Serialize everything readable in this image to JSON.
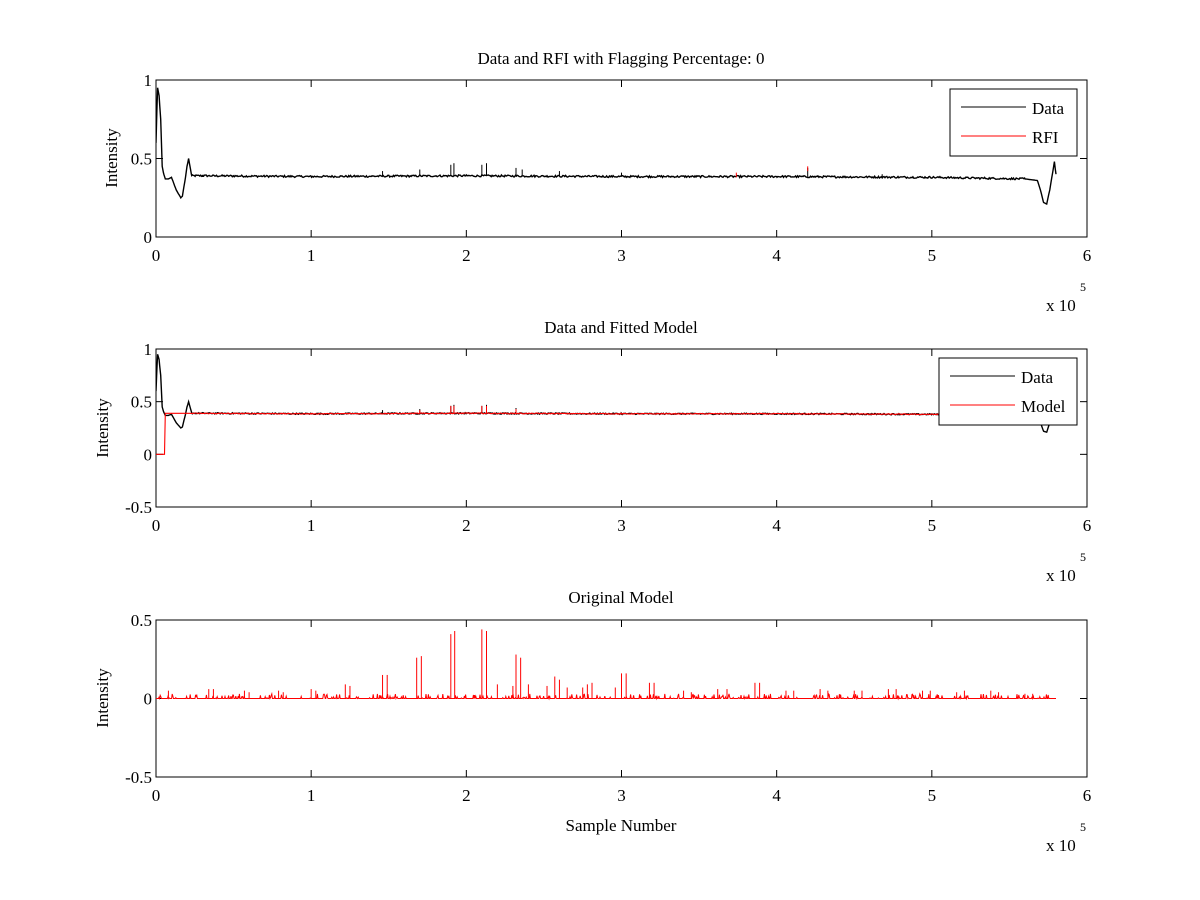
{
  "figure": {
    "background": "#ffffff",
    "colors": {
      "data": "#000000",
      "rfi": "#ff0000",
      "model": "#ff0000"
    }
  },
  "chart_data": [
    {
      "type": "line",
      "title": "Data and RFI with Flagging Percentage: 0",
      "xlabel": "",
      "ylabel": "Intensity",
      "xlim": [
        0,
        600000
      ],
      "ylim": [
        0,
        1
      ],
      "xticks": [
        "0",
        "1",
        "2",
        "3",
        "4",
        "5",
        "6"
      ],
      "xtick_values": [
        0,
        100000,
        200000,
        300000,
        400000,
        500000,
        600000
      ],
      "yticks": [
        "0",
        "0.5",
        "1"
      ],
      "ytick_values": [
        0,
        0.5,
        1
      ],
      "x_exponent_label": "x 10",
      "x_exponent_power": "5",
      "legend": {
        "position": "top-right",
        "entries": [
          "Data",
          "RFI"
        ]
      },
      "series": [
        {
          "name": "Data",
          "color": "#000000",
          "x": [
            0,
            1000,
            2000,
            3000,
            4000,
            5000,
            6000,
            8000,
            10000,
            13000,
            16000,
            17000,
            19000,
            20000,
            21000,
            23000,
            30000,
            100000,
            200000,
            300000,
            400000,
            500000,
            560000,
            568000,
            570000,
            572000,
            574000,
            576000,
            578000,
            579000,
            580000
          ],
          "y": [
            0.6,
            0.95,
            0.9,
            0.75,
            0.45,
            0.4,
            0.37,
            0.37,
            0.38,
            0.3,
            0.25,
            0.26,
            0.38,
            0.45,
            0.5,
            0.39,
            0.39,
            0.385,
            0.39,
            0.385,
            0.385,
            0.38,
            0.37,
            0.36,
            0.3,
            0.22,
            0.21,
            0.3,
            0.42,
            0.48,
            0.4
          ],
          "noise": 0.006,
          "spikes": [
            {
              "x": 190000,
              "y": 0.46
            },
            {
              "x": 192000,
              "y": 0.47
            },
            {
              "x": 210000,
              "y": 0.46
            },
            {
              "x": 213000,
              "y": 0.47
            },
            {
              "x": 170000,
              "y": 0.43
            },
            {
              "x": 232000,
              "y": 0.44
            },
            {
              "x": 236000,
              "y": 0.43
            },
            {
              "x": 146000,
              "y": 0.42
            },
            {
              "x": 260000,
              "y": 0.42
            },
            {
              "x": 300000,
              "y": 0.41
            },
            {
              "x": 420000,
              "y": 0.44
            },
            {
              "x": 468000,
              "y": 0.4
            }
          ]
        },
        {
          "name": "RFI",
          "color": "#ff0000",
          "x": [],
          "y": [],
          "spikes": [
            {
              "x": 374000,
              "y": 0.41
            },
            {
              "x": 420000,
              "y": 0.45
            }
          ]
        }
      ]
    },
    {
      "type": "line",
      "title": "Data and Fitted Model",
      "xlabel": "",
      "ylabel": "Intensity",
      "xlim": [
        0,
        600000
      ],
      "ylim": [
        -0.5,
        1
      ],
      "xticks": [
        "0",
        "1",
        "2",
        "3",
        "4",
        "5",
        "6"
      ],
      "xtick_values": [
        0,
        100000,
        200000,
        300000,
        400000,
        500000,
        600000
      ],
      "yticks": [
        "-0.5",
        "0",
        "0.5",
        "1"
      ],
      "ytick_values": [
        -0.5,
        0,
        0.5,
        1
      ],
      "x_exponent_label": "x 10",
      "x_exponent_power": "5",
      "legend": {
        "position": "top-right",
        "entries": [
          "Data",
          "Model"
        ]
      },
      "series": [
        {
          "name": "Data",
          "color": "#000000",
          "x": [
            0,
            1000,
            2000,
            3000,
            4000,
            5000,
            6000,
            8000,
            10000,
            13000,
            16000,
            17000,
            19000,
            20000,
            21000,
            23000,
            30000,
            100000,
            200000,
            300000,
            400000,
            500000,
            560000,
            568000,
            570000,
            572000,
            574000,
            576000,
            578000,
            579000,
            580000
          ],
          "y": [
            0.6,
            0.95,
            0.9,
            0.75,
            0.45,
            0.4,
            0.37,
            0.37,
            0.38,
            0.3,
            0.25,
            0.26,
            0.38,
            0.45,
            0.5,
            0.39,
            0.39,
            0.385,
            0.39,
            0.385,
            0.385,
            0.38,
            0.37,
            0.36,
            0.3,
            0.22,
            0.21,
            0.3,
            0.42,
            0.48,
            0.4
          ],
          "noise": 0.006,
          "spikes": [
            {
              "x": 190000,
              "y": 0.46
            },
            {
              "x": 192000,
              "y": 0.47
            },
            {
              "x": 210000,
              "y": 0.46
            },
            {
              "x": 213000,
              "y": 0.47
            },
            {
              "x": 170000,
              "y": 0.43
            },
            {
              "x": 232000,
              "y": 0.44
            },
            {
              "x": 146000,
              "y": 0.42
            }
          ]
        },
        {
          "name": "Model",
          "color": "#ff0000",
          "x": [
            0,
            5500,
            5500,
            6000,
            100000,
            200000,
            300000,
            400000,
            500000,
            580000
          ],
          "y": [
            0,
            0,
            0.4,
            0.39,
            0.385,
            0.39,
            0.385,
            0.385,
            0.38,
            0.375
          ],
          "noise": 0.004,
          "spikes": [
            {
              "x": 190000,
              "y": 0.46
            },
            {
              "x": 192000,
              "y": 0.46
            },
            {
              "x": 210000,
              "y": 0.46
            },
            {
              "x": 213000,
              "y": 0.46
            },
            {
              "x": 170000,
              "y": 0.42
            },
            {
              "x": 232000,
              "y": 0.43
            }
          ]
        }
      ]
    },
    {
      "type": "line",
      "title": "Original Model",
      "xlabel": "Sample Number",
      "ylabel": "Intensity",
      "xlim": [
        0,
        600000
      ],
      "ylim": [
        -0.5,
        0.5
      ],
      "xticks": [
        "0",
        "1",
        "2",
        "3",
        "4",
        "5",
        "6"
      ],
      "xtick_values": [
        0,
        100000,
        200000,
        300000,
        400000,
        500000,
        600000
      ],
      "yticks": [
        "-0.5",
        "0",
        "0.5"
      ],
      "ytick_values": [
        -0.5,
        0,
        0.5
      ],
      "x_exponent_label": "x 10",
      "x_exponent_power": "5",
      "series": [
        {
          "color": "#ff0000",
          "baseline": 0,
          "x_end": 580000,
          "spikes": [
            {
              "x": 8000,
              "y": 0.05
            },
            {
              "x": 34000,
              "y": 0.06
            },
            {
              "x": 37000,
              "y": 0.06
            },
            {
              "x": 57000,
              "y": 0.05
            },
            {
              "x": 60000,
              "y": 0.04
            },
            {
              "x": 79000,
              "y": 0.05
            },
            {
              "x": 82000,
              "y": 0.04
            },
            {
              "x": 100000,
              "y": 0.06
            },
            {
              "x": 103000,
              "y": 0.05
            },
            {
              "x": 122000,
              "y": 0.09
            },
            {
              "x": 125000,
              "y": 0.08
            },
            {
              "x": 146000,
              "y": 0.15
            },
            {
              "x": 149000,
              "y": 0.15
            },
            {
              "x": 168000,
              "y": 0.26
            },
            {
              "x": 171000,
              "y": 0.27
            },
            {
              "x": 190000,
              "y": 0.41
            },
            {
              "x": 192500,
              "y": 0.43
            },
            {
              "x": 210000,
              "y": 0.44
            },
            {
              "x": 213000,
              "y": 0.43
            },
            {
              "x": 220000,
              "y": 0.09
            },
            {
              "x": 230000,
              "y": 0.08
            },
            {
              "x": 232000,
              "y": 0.28
            },
            {
              "x": 235000,
              "y": 0.26
            },
            {
              "x": 240000,
              "y": 0.09
            },
            {
              "x": 252000,
              "y": 0.08
            },
            {
              "x": 257000,
              "y": 0.14
            },
            {
              "x": 260000,
              "y": 0.12
            },
            {
              "x": 265000,
              "y": 0.07
            },
            {
              "x": 275000,
              "y": 0.07
            },
            {
              "x": 278000,
              "y": 0.09
            },
            {
              "x": 281000,
              "y": 0.1
            },
            {
              "x": 296000,
              "y": 0.07
            },
            {
              "x": 300000,
              "y": 0.16
            },
            {
              "x": 303000,
              "y": 0.16
            },
            {
              "x": 318000,
              "y": 0.1
            },
            {
              "x": 321000,
              "y": 0.1
            },
            {
              "x": 340000,
              "y": 0.05
            },
            {
              "x": 345000,
              "y": 0.04
            },
            {
              "x": 362000,
              "y": 0.06
            },
            {
              "x": 368000,
              "y": 0.06
            },
            {
              "x": 386000,
              "y": 0.1
            },
            {
              "x": 389000,
              "y": 0.1
            },
            {
              "x": 406000,
              "y": 0.05
            },
            {
              "x": 411000,
              "y": 0.05
            },
            {
              "x": 428000,
              "y": 0.06
            },
            {
              "x": 433000,
              "y": 0.05
            },
            {
              "x": 450000,
              "y": 0.05
            },
            {
              "x": 455000,
              "y": 0.05
            },
            {
              "x": 472000,
              "y": 0.06
            },
            {
              "x": 477000,
              "y": 0.06
            },
            {
              "x": 494000,
              "y": 0.05
            },
            {
              "x": 499000,
              "y": 0.05
            },
            {
              "x": 516000,
              "y": 0.04
            },
            {
              "x": 521000,
              "y": 0.05
            },
            {
              "x": 538000,
              "y": 0.05
            },
            {
              "x": 543000,
              "y": 0.04
            },
            {
              "x": 560000,
              "y": 0.03
            },
            {
              "x": 565000,
              "y": 0.03
            }
          ],
          "small_spike_max": 0.03
        }
      ]
    }
  ]
}
